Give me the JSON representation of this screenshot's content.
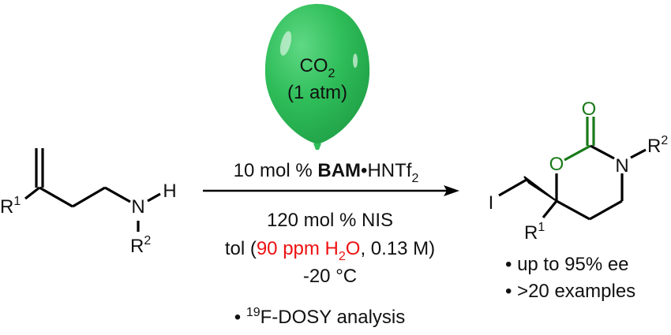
{
  "balloon": {
    "line1": "CO",
    "line1_sub": "2",
    "line2": "(1 atm)",
    "color": "#2ebd59"
  },
  "conditions": {
    "catalyst_amount": "10 mol % ",
    "catalyst_bold": "BAM",
    "catalyst_dot": "•",
    "catalyst_acid": "HNTf",
    "catalyst_acid_sub": "2",
    "reagent": "120 mol % NIS",
    "solvent_prefix": "tol (",
    "water_text": "90 ppm H",
    "water_sub": "2",
    "water_o": "O",
    "solvent_suffix": ", 0.13 M)",
    "temperature": "-20 °C",
    "analysis_bullet": "•",
    "analysis_sup": "19",
    "analysis_text": "F-DOSY analysis",
    "highlight_color": "#ee1111"
  },
  "starting_material": {
    "r1": "R",
    "r1_sup": "1",
    "n": "N",
    "h": "H",
    "r2": "R",
    "r2_sup": "2"
  },
  "product": {
    "o_carbonyl": "O",
    "o_ring": "O",
    "n": "N",
    "r2": "R",
    "r2_sup": "2",
    "iodine": "I",
    "r1": "R",
    "r1_sup": "1",
    "carbamate_color": "#1a7a1a"
  },
  "results": {
    "ee": "• up to 95% ee",
    "examples": "• >20 examples"
  }
}
